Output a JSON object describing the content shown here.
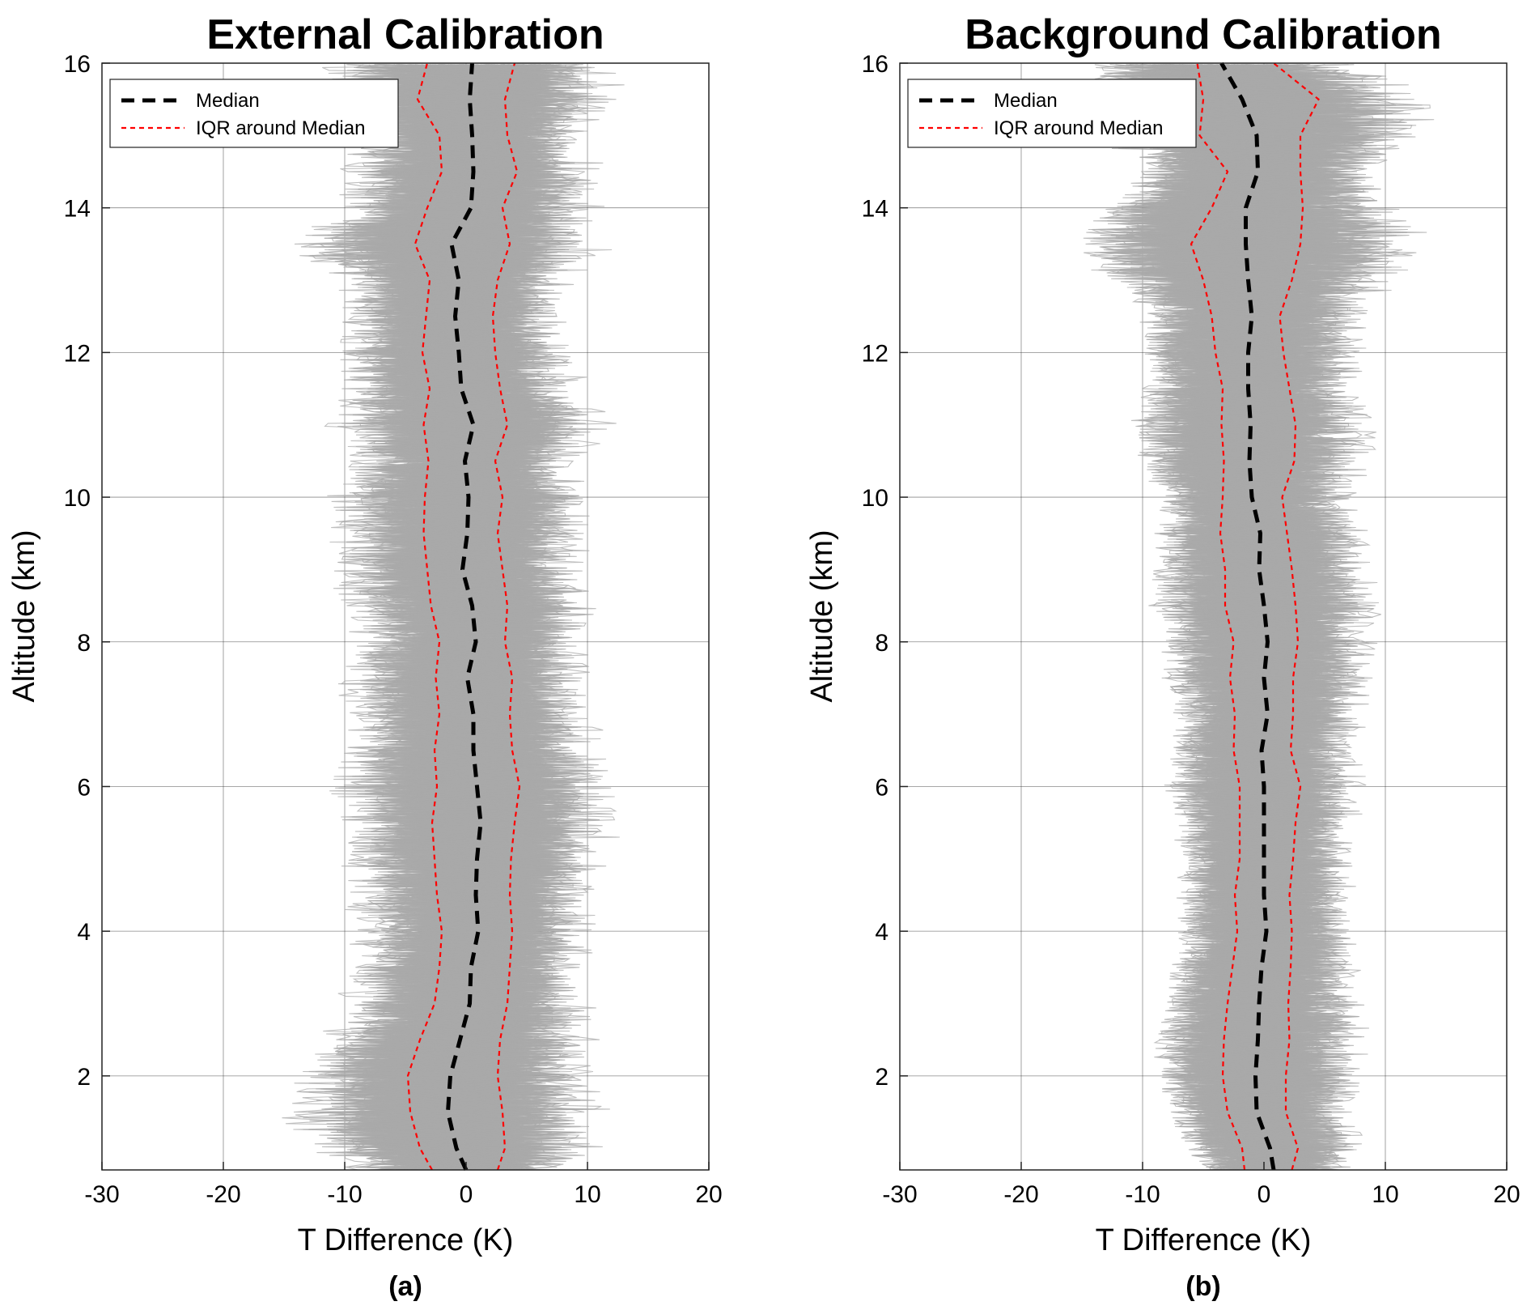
{
  "chart_data": [
    {
      "type": "line",
      "panel": "(a)",
      "title": "External Calibration",
      "xlabel": "T Difference (K)",
      "ylabel": "Altitude (km)",
      "xlim": [
        -30,
        20
      ],
      "ylim": [
        0.7,
        16
      ],
      "xticks": [
        "-30",
        "-20",
        "-10",
        "0",
        "10",
        "20"
      ],
      "yticks": [
        "2",
        "4",
        "6",
        "8",
        "10",
        "12",
        "14",
        "16"
      ],
      "grid": true,
      "legend_position": "top-left",
      "colors": {
        "individual": "#aaaaaa",
        "median": "#000000",
        "iqr": "#ff0000"
      },
      "series": [
        {
          "name": "Median",
          "style": "dashed-thick",
          "y": [
            0.7,
            1.0,
            1.5,
            2.0,
            2.5,
            3.0,
            3.5,
            4.0,
            4.5,
            5.0,
            5.5,
            6.0,
            6.5,
            7.0,
            7.5,
            8.0,
            8.5,
            9.0,
            9.5,
            10.0,
            10.5,
            11.0,
            11.5,
            12.0,
            12.5,
            13.0,
            13.5,
            14.0,
            14.5,
            15.0,
            15.5,
            16.0
          ],
          "x": [
            0.0,
            -0.8,
            -1.5,
            -1.3,
            -0.5,
            0.3,
            0.4,
            1.0,
            0.8,
            0.9,
            1.2,
            0.9,
            0.6,
            0.6,
            0.1,
            0.8,
            0.5,
            -0.3,
            0.1,
            0.2,
            -0.1,
            0.6,
            -0.4,
            -0.6,
            -0.9,
            -0.6,
            -1.2,
            0.4,
            0.6,
            0.5,
            0.3,
            0.5
          ]
        },
        {
          "name": "IQR around Median",
          "style": "dashed-thin",
          "bound": "lower",
          "y": [
            0.7,
            1.0,
            1.5,
            2.0,
            2.5,
            3.0,
            3.5,
            4.0,
            4.5,
            5.0,
            5.5,
            6.0,
            6.5,
            7.0,
            7.5,
            8.0,
            8.5,
            9.0,
            9.5,
            10.0,
            10.5,
            11.0,
            11.5,
            12.0,
            12.5,
            13.0,
            13.5,
            14.0,
            14.5,
            15.0,
            15.5,
            16.0
          ],
          "x": [
            -2.8,
            -3.8,
            -4.6,
            -4.8,
            -3.8,
            -2.6,
            -2.2,
            -2.0,
            -2.4,
            -2.6,
            -2.8,
            -2.4,
            -2.6,
            -2.2,
            -2.5,
            -2.2,
            -2.9,
            -3.2,
            -3.5,
            -3.4,
            -3.1,
            -3.5,
            -3.0,
            -3.6,
            -3.3,
            -3.0,
            -4.2,
            -3.2,
            -2.0,
            -2.2,
            -4.0,
            -3.2
          ]
        },
        {
          "name": "IQR around Median",
          "style": "dashed-thin",
          "bound": "upper",
          "y": [
            0.7,
            1.0,
            1.5,
            2.0,
            2.5,
            3.0,
            3.5,
            4.0,
            4.5,
            5.0,
            5.5,
            6.0,
            6.5,
            7.0,
            7.5,
            8.0,
            8.5,
            9.0,
            9.5,
            10.0,
            10.5,
            11.0,
            11.5,
            12.0,
            12.5,
            13.0,
            13.5,
            14.0,
            14.5,
            15.0,
            15.5,
            16.0
          ],
          "x": [
            2.6,
            3.2,
            3.0,
            2.6,
            2.8,
            3.4,
            3.6,
            3.8,
            3.6,
            3.7,
            4.0,
            4.4,
            3.8,
            3.6,
            3.8,
            3.2,
            3.4,
            3.0,
            2.6,
            3.0,
            2.4,
            3.4,
            2.8,
            2.4,
            2.2,
            2.6,
            3.6,
            3.0,
            4.2,
            3.4,
            3.2,
            4.0
          ]
        }
      ]
    },
    {
      "type": "line",
      "panel": "(b)",
      "title": "Background Calibration",
      "xlabel": "T Difference (K)",
      "ylabel": "Altitude (km)",
      "xlim": [
        -30,
        20
      ],
      "ylim": [
        0.7,
        16
      ],
      "xticks": [
        "-30",
        "-20",
        "-10",
        "0",
        "10",
        "20"
      ],
      "yticks": [
        "2",
        "4",
        "6",
        "8",
        "10",
        "12",
        "14",
        "16"
      ],
      "grid": true,
      "legend_position": "top-left",
      "colors": {
        "individual": "#aaaaaa",
        "median": "#000000",
        "iqr": "#ff0000"
      },
      "series": [
        {
          "name": "Median",
          "style": "dashed-thick",
          "y": [
            0.7,
            1.0,
            1.5,
            2.0,
            2.5,
            3.0,
            3.5,
            4.0,
            4.5,
            5.0,
            5.5,
            6.0,
            6.5,
            7.0,
            7.5,
            8.0,
            8.5,
            9.0,
            9.5,
            10.0,
            10.5,
            11.0,
            11.5,
            12.0,
            12.5,
            13.0,
            13.5,
            14.0,
            14.5,
            15.0,
            15.5,
            16.0
          ],
          "x": [
            0.8,
            0.5,
            -0.6,
            -0.7,
            -0.5,
            -0.4,
            -0.2,
            0.2,
            0.0,
            0.0,
            0.0,
            0.0,
            -0.2,
            0.3,
            0.0,
            0.3,
            0.0,
            -0.4,
            -0.3,
            -1.0,
            -1.2,
            -1.1,
            -1.3,
            -1.3,
            -1.0,
            -1.3,
            -1.5,
            -1.5,
            -0.5,
            -0.6,
            -1.8,
            -3.5
          ]
        },
        {
          "name": "IQR around Median",
          "style": "dashed-thin",
          "bound": "lower",
          "y": [
            0.7,
            1.0,
            1.5,
            2.0,
            2.5,
            3.0,
            3.5,
            4.0,
            4.5,
            5.0,
            5.5,
            6.0,
            6.5,
            7.0,
            7.5,
            8.0,
            8.5,
            9.0,
            9.5,
            10.0,
            10.5,
            11.0,
            11.5,
            12.0,
            12.5,
            13.0,
            13.5,
            14.0,
            14.5,
            15.0,
            15.5,
            16.0
          ],
          "x": [
            -1.6,
            -1.8,
            -3.0,
            -3.4,
            -3.3,
            -3.0,
            -2.6,
            -2.2,
            -2.4,
            -2.0,
            -2.0,
            -2.0,
            -2.5,
            -2.4,
            -2.8,
            -2.5,
            -3.2,
            -3.2,
            -3.6,
            -3.4,
            -3.3,
            -3.5,
            -3.4,
            -4.0,
            -4.3,
            -5.0,
            -6.0,
            -4.3,
            -3.0,
            -5.3,
            -5.0,
            -5.5
          ]
        },
        {
          "name": "IQR around Median",
          "style": "dashed-thin",
          "bound": "upper",
          "y": [
            0.7,
            1.0,
            1.5,
            2.0,
            2.5,
            3.0,
            3.5,
            4.0,
            4.5,
            5.0,
            5.5,
            6.0,
            6.5,
            7.0,
            7.5,
            8.0,
            8.5,
            9.0,
            9.5,
            10.0,
            10.5,
            11.0,
            11.5,
            12.0,
            12.5,
            13.0,
            13.5,
            14.0,
            14.5,
            15.0,
            15.5,
            16.0
          ],
          "x": [
            2.3,
            2.8,
            1.8,
            1.8,
            2.1,
            2.0,
            2.2,
            2.3,
            2.1,
            2.4,
            2.6,
            3.0,
            2.2,
            2.4,
            2.4,
            2.8,
            2.6,
            2.3,
            1.9,
            1.5,
            2.5,
            2.6,
            2.1,
            1.6,
            1.3,
            2.3,
            3.0,
            3.2,
            3.0,
            3.0,
            4.5,
            0.8
          ]
        }
      ]
    }
  ]
}
